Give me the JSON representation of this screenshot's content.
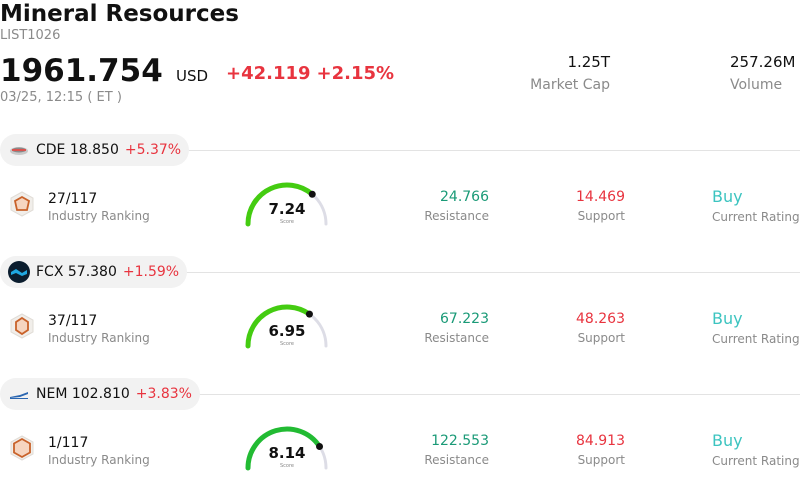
{
  "header": {
    "title": "Mineral Resources",
    "code": "LIST1026",
    "price": "1961.754",
    "currency": "USD",
    "change": "+42.119",
    "change_pct": "+2.15%",
    "time": "03/25, 12:15  ( ET )",
    "market_cap_value": "1.25T",
    "market_cap_label": "Market Cap",
    "volume_value": "257.26M",
    "volume_label": "Volume"
  },
  "colors": {
    "up": "#e8343f",
    "resistance": "#1a9a77",
    "rating": "#3cc4c0",
    "gauge_track": "#dddde6"
  },
  "stocks": [
    {
      "ticker": "CDE",
      "price": "18.850",
      "change_pct": "+5.37%",
      "logo_icon": "cde-logo-icon",
      "rank_value": "27/117",
      "rank_label": "Industry Ranking",
      "score": "7.24",
      "score_value": 7.24,
      "score_label": "Score",
      "resistance_value": "24.766",
      "resistance_label": "Resistance",
      "support_value": "14.469",
      "support_label": "Support",
      "rating_value": "Buy",
      "rating_label": "Current Rating"
    },
    {
      "ticker": "FCX",
      "price": "57.380",
      "change_pct": "+1.59%",
      "logo_icon": "fcx-logo-icon",
      "rank_value": "37/117",
      "rank_label": "Industry Ranking",
      "score": "6.95",
      "score_value": 6.95,
      "score_label": "Score",
      "resistance_value": "67.223",
      "resistance_label": "Resistance",
      "support_value": "48.263",
      "support_label": "Support",
      "rating_value": "Buy",
      "rating_label": "Current Rating"
    },
    {
      "ticker": "NEM",
      "price": "102.810",
      "change_pct": "+3.83%",
      "logo_icon": "nem-logo-icon",
      "rank_value": "1/117",
      "rank_label": "Industry Ranking",
      "score": "8.14",
      "score_value": 8.14,
      "score_label": "Score",
      "resistance_value": "122.553",
      "resistance_label": "Resistance",
      "support_value": "84.913",
      "support_label": "Support",
      "rating_value": "Buy",
      "rating_label": "Current Rating"
    }
  ]
}
